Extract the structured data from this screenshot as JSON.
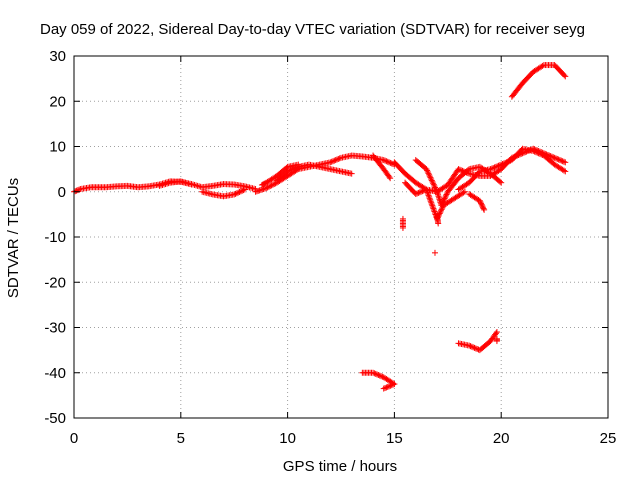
{
  "chart_data": {
    "type": "scatter",
    "title": "Day 059 of 2022, Sidereal Day-to-day VTEC variation (SDTVAR) for receiver seyg",
    "xlabel": "GPS time / hours",
    "ylabel": "SDTVAR / TECUs",
    "xlim": [
      0,
      25
    ],
    "ylim": [
      -50,
      30
    ],
    "xticks": [
      0,
      5,
      10,
      15,
      20,
      25
    ],
    "yticks": [
      -50,
      -40,
      -30,
      -20,
      -10,
      0,
      10,
      20,
      30
    ],
    "grid": true,
    "marker": "+",
    "color": "#ff0000",
    "series": [
      {
        "name": "seg1",
        "points": [
          [
            0,
            0
          ],
          [
            0.3,
            0.6
          ],
          [
            0.8,
            1.0
          ],
          [
            1.5,
            1.0
          ],
          [
            2.0,
            1.2
          ],
          [
            2.5,
            1.3
          ],
          [
            3.0,
            1.0
          ],
          [
            3.5,
            1.2
          ],
          [
            4.0,
            1.6
          ],
          [
            4.5,
            2.3
          ],
          [
            5.0,
            2.2
          ],
          [
            5.5,
            1.7
          ],
          [
            6.0,
            1.0
          ],
          [
            6.5,
            1.3
          ],
          [
            7.0,
            1.7
          ],
          [
            7.5,
            1.6
          ],
          [
            8.0,
            1.2
          ],
          [
            8.5,
            0.6
          ]
        ]
      },
      {
        "name": "seg2",
        "points": [
          [
            4.0,
            1.3
          ],
          [
            4.5,
            2.0
          ],
          [
            5.0,
            2.3
          ],
          [
            5.5,
            1.6
          ]
        ]
      },
      {
        "name": "seg3",
        "points": [
          [
            6.0,
            0.0
          ],
          [
            6.5,
            -0.6
          ],
          [
            7.0,
            -1.0
          ],
          [
            7.5,
            -0.6
          ],
          [
            8.0,
            0.5
          ]
        ]
      },
      {
        "name": "seg4",
        "points": [
          [
            8.5,
            0.0
          ],
          [
            9.0,
            0.8
          ],
          [
            9.5,
            2.0
          ],
          [
            10.0,
            3.5
          ],
          [
            10.5,
            5.0
          ],
          [
            11.0,
            5.5
          ],
          [
            11.5,
            6.0
          ],
          [
            12.0,
            6.5
          ],
          [
            12.5,
            7.5
          ],
          [
            13.0,
            8.0
          ],
          [
            13.5,
            7.8
          ],
          [
            14.0,
            7.5
          ],
          [
            14.5,
            7.0
          ],
          [
            15.0,
            6.0
          ]
        ]
      },
      {
        "name": "seg5",
        "points": [
          [
            9.5,
            2.5
          ],
          [
            10.0,
            4.5
          ],
          [
            10.5,
            5.5
          ],
          [
            11.0,
            6.0
          ],
          [
            11.5,
            5.5
          ],
          [
            12.0,
            5.0
          ],
          [
            12.5,
            4.5
          ],
          [
            13.0,
            4.0
          ]
        ]
      },
      {
        "name": "seg6",
        "points": [
          [
            8.8,
            1.5
          ],
          [
            9.0,
            2.0
          ],
          [
            9.5,
            3.5
          ],
          [
            10.0,
            5.5
          ],
          [
            10.5,
            6.0
          ]
        ]
      },
      {
        "name": "seg7",
        "points": [
          [
            14.0,
            8.0
          ],
          [
            14.5,
            5.0
          ],
          [
            14.8,
            3.0
          ]
        ]
      },
      {
        "name": "seg8",
        "points": [
          [
            15.0,
            6.5
          ],
          [
            15.5,
            4.0
          ],
          [
            16.0,
            2.0
          ],
          [
            16.5,
            0.5
          ],
          [
            17.0,
            0.0
          ],
          [
            17.5,
            1.5
          ],
          [
            18.0,
            5.0
          ],
          [
            18.5,
            4.0
          ],
          [
            19.0,
            3.5
          ],
          [
            19.5,
            3.5
          ],
          [
            20.0,
            5.0
          ],
          [
            20.5,
            7.5
          ],
          [
            21.0,
            8.5
          ],
          [
            21.5,
            9.5
          ],
          [
            22.0,
            8.5
          ],
          [
            22.5,
            7.5
          ],
          [
            23.0,
            6.5
          ]
        ]
      },
      {
        "name": "seg9",
        "points": [
          [
            16.0,
            7.0
          ],
          [
            16.5,
            5.0
          ],
          [
            17.0,
            0.0
          ],
          [
            17.2,
            -3.0
          ],
          [
            17.5,
            0.0
          ],
          [
            18.0,
            3.0
          ],
          [
            18.5,
            5.0
          ],
          [
            19.0,
            5.5
          ],
          [
            19.5,
            4.0
          ],
          [
            20.0,
            2.0
          ]
        ]
      },
      {
        "name": "seg10",
        "points": [
          [
            15.5,
            2.0
          ],
          [
            16.0,
            -0.5
          ],
          [
            16.5,
            0.5
          ],
          [
            17.0,
            -6.0
          ],
          [
            17.3,
            -3.0
          ],
          [
            17.8,
            -1.5
          ],
          [
            18.3,
            0.0
          ]
        ]
      },
      {
        "name": "seg11",
        "points": [
          [
            18.0,
            0.5
          ],
          [
            18.5,
            2.0
          ],
          [
            19.0,
            4.5
          ],
          [
            19.5,
            5.0
          ],
          [
            20.0,
            6.0
          ],
          [
            20.5,
            7.0
          ],
          [
            21.0,
            9.5
          ],
          [
            21.5,
            9.0
          ],
          [
            22.0,
            8.0
          ],
          [
            22.5,
            6.0
          ],
          [
            23.0,
            4.5
          ]
        ]
      },
      {
        "name": "seg12",
        "points": [
          [
            18.5,
            -0.5
          ],
          [
            19.0,
            -2.0
          ],
          [
            19.2,
            -4.0
          ]
        ]
      },
      {
        "name": "seg13",
        "points": [
          [
            20.5,
            21.0
          ],
          [
            21.0,
            24.0
          ],
          [
            21.5,
            26.5
          ],
          [
            22.0,
            28.0
          ],
          [
            22.5,
            28.0
          ],
          [
            23.0,
            25.5
          ]
        ]
      },
      {
        "name": "seg14",
        "points": [
          [
            13.5,
            -40.0
          ],
          [
            14.0,
            -40.0
          ],
          [
            14.5,
            -41.0
          ],
          [
            15.0,
            -42.5
          ],
          [
            14.5,
            -43.5
          ]
        ]
      },
      {
        "name": "seg15",
        "points": [
          [
            18.0,
            -33.5
          ],
          [
            18.5,
            -34.0
          ],
          [
            19.0,
            -35.0
          ],
          [
            19.5,
            -33.0
          ],
          [
            19.8,
            -31.0
          ]
        ]
      },
      {
        "name": "seg16",
        "points": [
          [
            15.4,
            -6.0
          ],
          [
            15.4,
            -8.0
          ]
        ]
      },
      {
        "name": "seg17",
        "points": [
          [
            17.0,
            -5.5
          ],
          [
            17.05,
            -7.0
          ]
        ]
      },
      {
        "name": "seg18",
        "points": [
          [
            16.9,
            -13.5
          ]
        ]
      },
      {
        "name": "seg19",
        "points": [
          [
            19.8,
            -32.5
          ],
          [
            19.8,
            -33.0
          ]
        ]
      }
    ]
  }
}
